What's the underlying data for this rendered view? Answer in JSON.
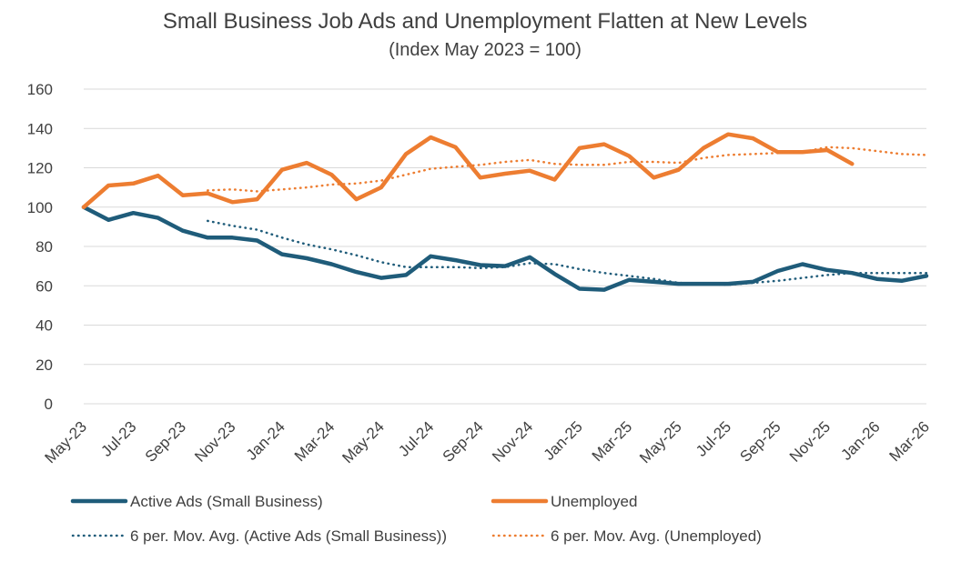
{
  "chart_data": {
    "type": "line",
    "title": "Small Business Job Ads and Unemployment Flatten at New Levels",
    "subtitle": "(Index May 2023 = 100)",
    "ylim": [
      0,
      160
    ],
    "yticks": [
      0,
      20,
      40,
      60,
      80,
      100,
      120,
      140,
      160
    ],
    "grid": "horizontal",
    "legend_position": "bottom",
    "x": [
      "May-23",
      "Jun-23",
      "Jul-23",
      "Aug-23",
      "Sep-23",
      "Oct-23",
      "Nov-23",
      "Dec-23",
      "Jan-24",
      "Feb-24",
      "Mar-24",
      "Apr-24",
      "May-24",
      "Jun-24",
      "Jul-24",
      "Aug-24",
      "Sep-24",
      "Oct-24",
      "Nov-24",
      "Dec-24",
      "Jan-25",
      "Feb-25",
      "Mar-25",
      "Apr-25",
      "May-25",
      "Jun-25",
      "Jul-25",
      "Aug-25",
      "Sep-25",
      "Oct-25",
      "Nov-25",
      "Dec-25",
      "Jan-26",
      "Feb-26",
      "Mar-26"
    ],
    "x_tick_labels": [
      "May-23",
      "Jul-23",
      "Sep-23",
      "Nov-23",
      "Jan-24",
      "Mar-24",
      "May-24",
      "Jul-24",
      "Sep-24",
      "Nov-24",
      "Jan-25",
      "Mar-25",
      "May-25",
      "Jul-25",
      "Sep-25",
      "Nov-25",
      "Jan-26",
      "Mar-26"
    ],
    "series": [
      {
        "name": "Active Ads (Small Business)",
        "color": "#1f5c7a",
        "style": "solid",
        "values": [
          100,
          93.5,
          97,
          94.5,
          88,
          84.5,
          84.5,
          83,
          76,
          74,
          71,
          67,
          64,
          65.5,
          75,
          73,
          70.5,
          70,
          74.5,
          66,
          58.5,
          58,
          63,
          62,
          61,
          61,
          61,
          62,
          67.5,
          71,
          68,
          66.5,
          63.5,
          62.5,
          65
        ]
      },
      {
        "name": "Unemployed",
        "color": "#ed7d31",
        "style": "solid",
        "values": [
          100,
          111,
          112,
          116,
          106,
          107,
          102.5,
          104,
          119,
          122.5,
          116.5,
          104,
          110,
          127,
          135.5,
          130.5,
          115,
          117,
          118.5,
          114,
          130,
          132,
          126,
          115,
          119,
          130,
          137,
          135,
          128,
          128,
          129,
          122,
          null,
          null,
          null
        ]
      },
      {
        "name": "6 per. Mov. Avg. (Active Ads (Small Business))",
        "color": "#1f5c7a",
        "style": "dotted",
        "values": [
          null,
          null,
          null,
          null,
          null,
          93,
          90.5,
          88.5,
          84.5,
          81,
          78.5,
          75.5,
          72,
          69.5,
          69.5,
          69.5,
          69,
          69.5,
          71.5,
          71,
          68.5,
          66.5,
          65,
          63.5,
          61.5,
          61,
          60.5,
          61.5,
          62.5,
          64,
          65.5,
          66.5,
          66.5,
          66.5,
          66.5
        ]
      },
      {
        "name": "6 per. Mov. Avg. (Unemployed)",
        "color": "#ed7d31",
        "style": "dotted",
        "values": [
          null,
          null,
          null,
          null,
          null,
          108.5,
          109,
          108,
          109,
          110,
          111.5,
          112,
          113.5,
          116.5,
          119.5,
          120.5,
          121.5,
          123,
          124,
          122,
          121.5,
          121.5,
          123,
          123,
          122.5,
          125,
          126.5,
          127,
          127.5,
          128,
          130.5,
          130,
          128.5,
          127,
          126.5
        ]
      }
    ]
  }
}
